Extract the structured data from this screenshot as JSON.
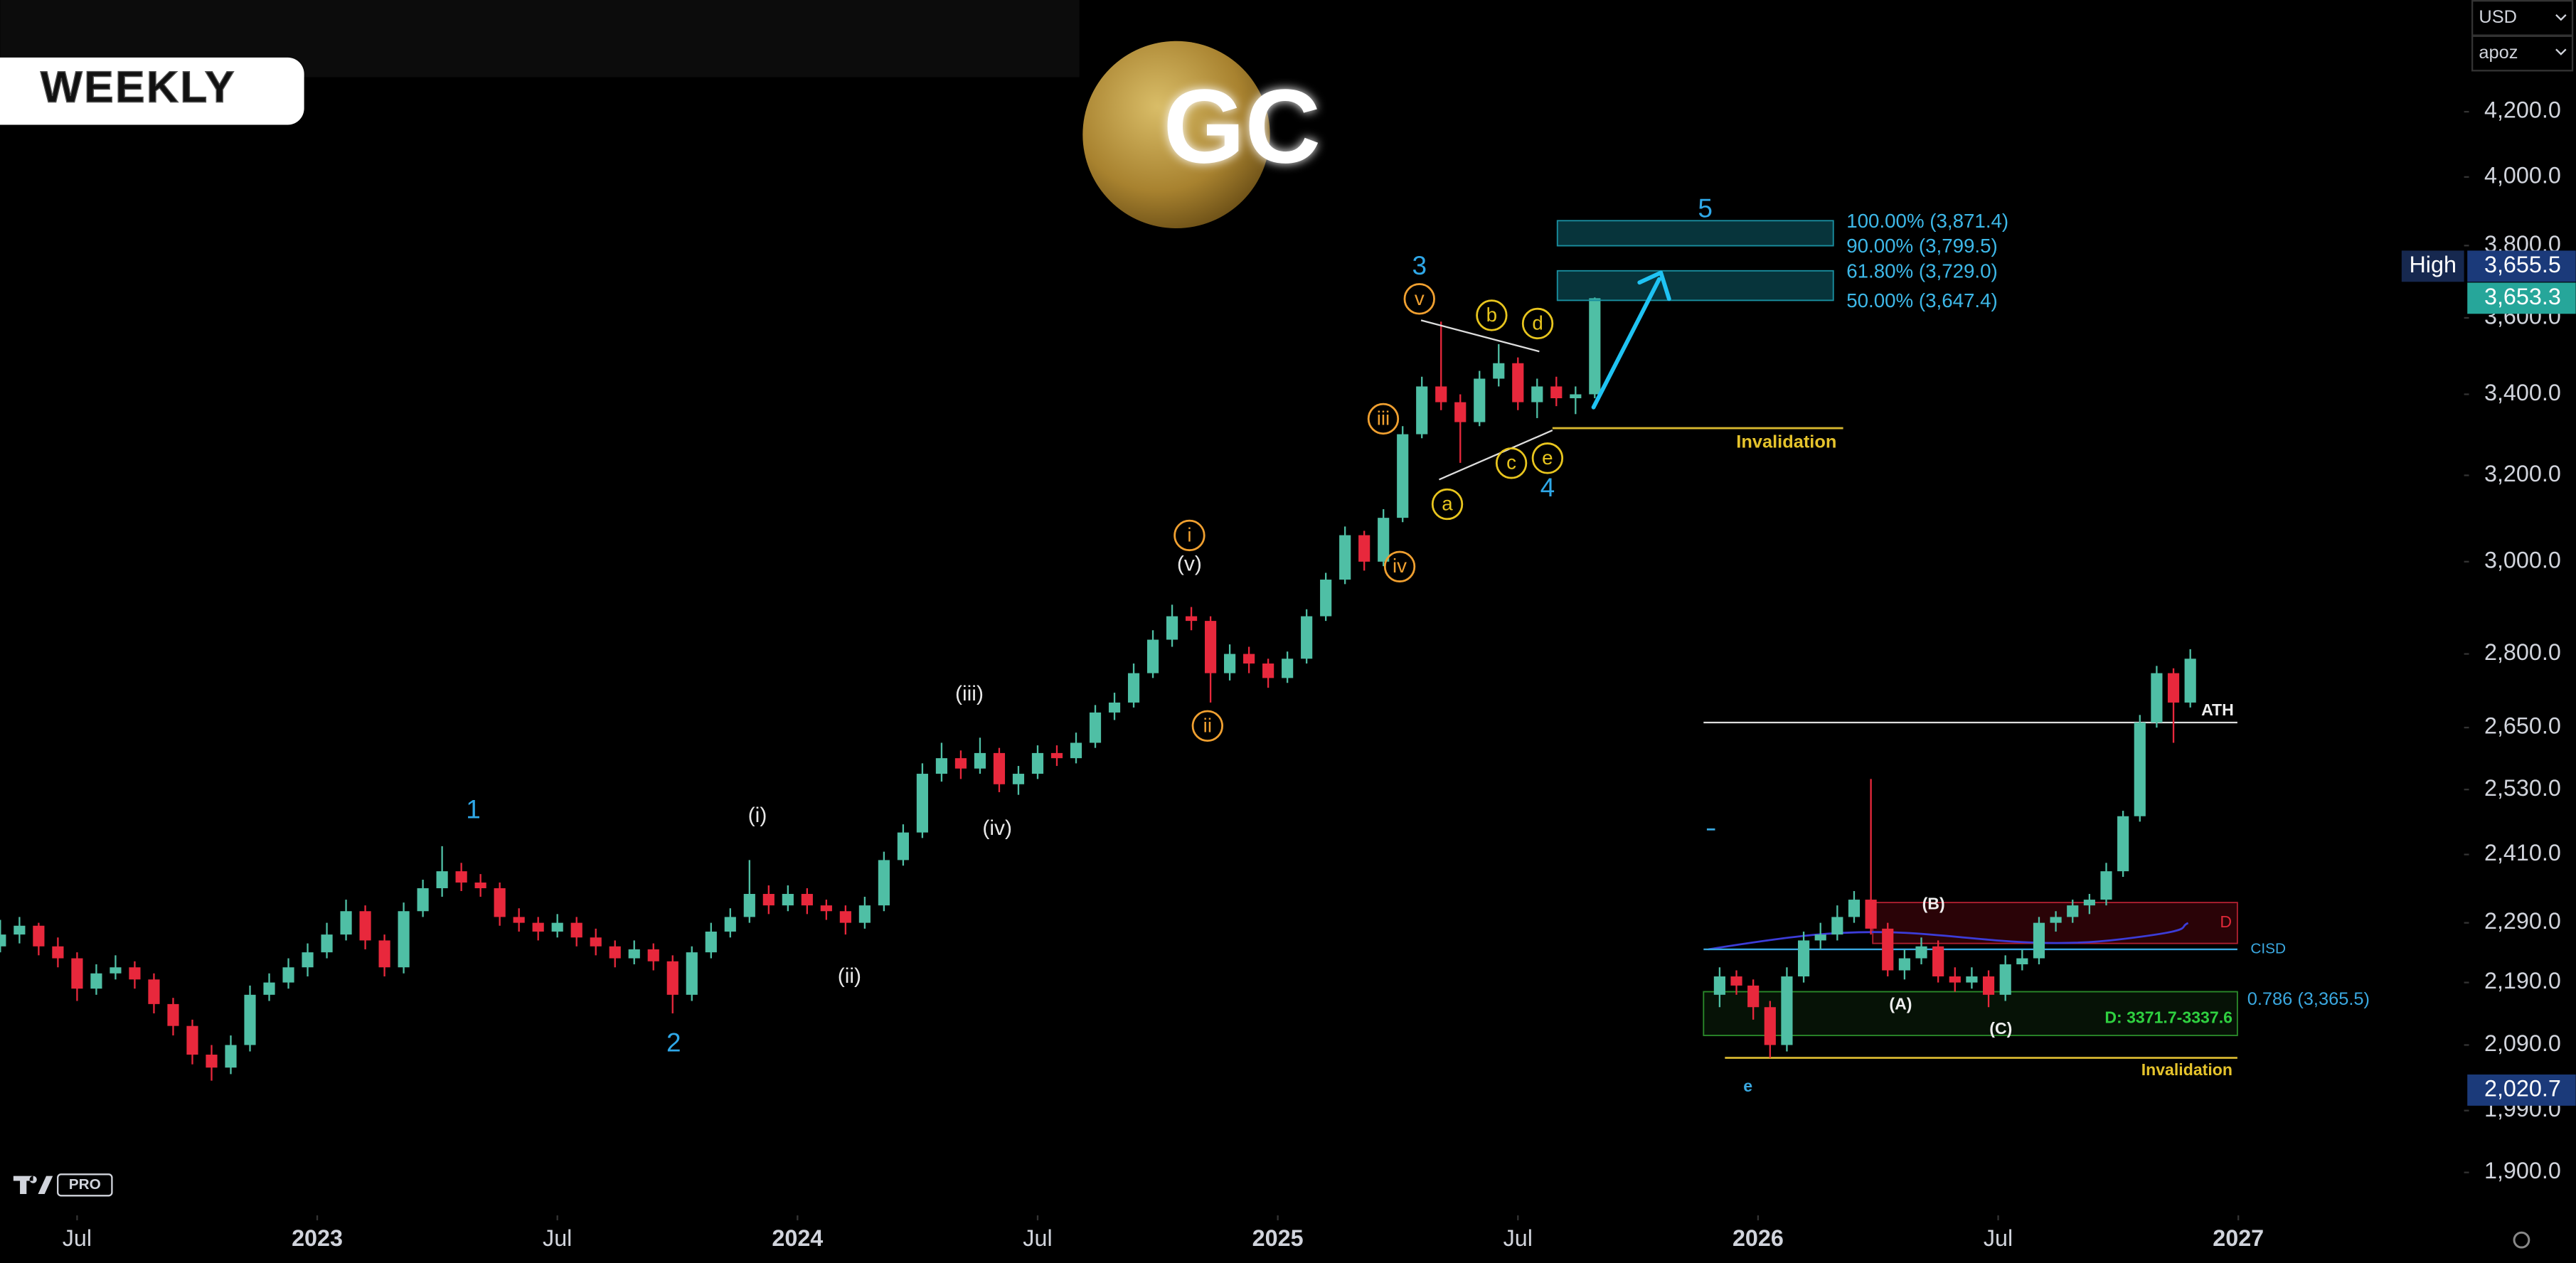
{
  "header": {
    "timeframe": "WEEKLY",
    "symbol": "GC",
    "currency": "USD",
    "account": "apoz",
    "badge": "PRO"
  },
  "chart_data": {
    "type": "candlestick",
    "log_scale": true,
    "grid": false,
    "up_color": "#4fbfa5",
    "down_color": "#e8283c",
    "xlim": [
      2022.34,
      2027.47
    ],
    "ylim": [
      1840,
      4566
    ],
    "xticks": [
      {
        "value": 2022.5,
        "label": "Jul"
      },
      2023,
      {
        "value": 2023.5,
        "label": "Jul"
      },
      2024,
      {
        "value": 2024.5,
        "label": "Jul"
      },
      2025,
      {
        "value": 2025.5,
        "label": "Jul"
      },
      2026,
      {
        "value": 2026.5,
        "label": "Jul"
      },
      2027
    ],
    "yticks": [
      {
        "value": 4200,
        "label": "4,200.0"
      },
      {
        "value": 4000,
        "label": "4,000.0"
      },
      {
        "value": 3800,
        "label": "3,800.0"
      },
      {
        "value": 3600,
        "label": "3,600.0"
      },
      {
        "value": 3400,
        "label": "3,400.0"
      },
      {
        "value": 3200,
        "label": "3,200.0"
      },
      {
        "value": 3000,
        "label": "3,000.0"
      },
      {
        "value": 2800,
        "label": "2,800.0"
      },
      {
        "value": 2650,
        "label": "2,650.0"
      },
      {
        "value": 2530,
        "label": "2,530.0"
      },
      {
        "value": 2410,
        "label": "2,410.0"
      },
      {
        "value": 2290,
        "label": "2,290.0"
      },
      {
        "value": 2190,
        "label": "2,190.0"
      },
      {
        "value": 2090,
        "label": "2,090.0"
      },
      {
        "value": 1990,
        "label": "1,990.0"
      },
      {
        "value": 1900,
        "label": "1,900.0"
      }
    ],
    "x": [
      2022.34,
      2022.38,
      2022.42,
      2022.46,
      2022.5,
      2022.54,
      2022.58,
      2022.62,
      2022.66,
      2022.7,
      2022.74,
      2022.78,
      2022.82,
      2022.86,
      2022.9,
      2022.94,
      2022.98,
      2023.02,
      2023.06,
      2023.1,
      2023.14,
      2023.18,
      2023.22,
      2023.26,
      2023.3,
      2023.34,
      2023.38,
      2023.42,
      2023.46,
      2023.5,
      2023.54,
      2023.58,
      2023.62,
      2023.66,
      2023.7,
      2023.74,
      2023.78,
      2023.82,
      2023.86,
      2023.9,
      2023.94,
      2023.98,
      2024.02,
      2024.06,
      2024.1,
      2024.14,
      2024.18,
      2024.22,
      2024.26,
      2024.3,
      2024.34,
      2024.38,
      2024.42,
      2024.46,
      2024.5,
      2024.54,
      2024.58,
      2024.62,
      2024.66,
      2024.7,
      2024.74,
      2024.78,
      2024.82,
      2024.86,
      2024.9,
      2024.94,
      2024.98,
      2025.02,
      2025.06,
      2025.1,
      2025.14,
      2025.18,
      2025.22,
      2025.26,
      2025.3,
      2025.34,
      2025.38,
      2025.42,
      2025.46,
      2025.5,
      2025.54,
      2025.58,
      2025.62,
      2025.66
    ],
    "ohlc": [
      [
        2250,
        2295,
        2240,
        2270
      ],
      [
        2270,
        2300,
        2255,
        2285
      ],
      [
        2285,
        2290,
        2235,
        2250
      ],
      [
        2250,
        2265,
        2215,
        2230
      ],
      [
        2230,
        2240,
        2160,
        2180
      ],
      [
        2180,
        2220,
        2170,
        2205
      ],
      [
        2205,
        2235,
        2195,
        2215
      ],
      [
        2215,
        2225,
        2180,
        2195
      ],
      [
        2195,
        2205,
        2140,
        2155
      ],
      [
        2155,
        2165,
        2105,
        2120
      ],
      [
        2120,
        2130,
        2060,
        2075
      ],
      [
        2075,
        2090,
        2035,
        2055
      ],
      [
        2055,
        2105,
        2045,
        2090
      ],
      [
        2090,
        2185,
        2080,
        2170
      ],
      [
        2170,
        2205,
        2160,
        2190
      ],
      [
        2190,
        2230,
        2180,
        2215
      ],
      [
        2215,
        2255,
        2200,
        2240
      ],
      [
        2240,
        2290,
        2230,
        2270
      ],
      [
        2270,
        2330,
        2260,
        2310
      ],
      [
        2310,
        2320,
        2245,
        2260
      ],
      [
        2260,
        2270,
        2200,
        2215
      ],
      [
        2215,
        2325,
        2205,
        2310
      ],
      [
        2310,
        2365,
        2300,
        2350
      ],
      [
        2350,
        2425,
        2335,
        2380
      ],
      [
        2380,
        2395,
        2345,
        2360
      ],
      [
        2360,
        2375,
        2335,
        2350
      ],
      [
        2350,
        2360,
        2285,
        2300
      ],
      [
        2300,
        2315,
        2275,
        2290
      ],
      [
        2290,
        2300,
        2260,
        2275
      ],
      [
        2275,
        2305,
        2265,
        2290
      ],
      [
        2290,
        2300,
        2250,
        2265
      ],
      [
        2265,
        2280,
        2235,
        2250
      ],
      [
        2250,
        2260,
        2215,
        2230
      ],
      [
        2230,
        2260,
        2220,
        2245
      ],
      [
        2245,
        2255,
        2210,
        2225
      ],
      [
        2225,
        2235,
        2140,
        2170
      ],
      [
        2170,
        2250,
        2160,
        2240
      ],
      [
        2240,
        2290,
        2230,
        2275
      ],
      [
        2275,
        2315,
        2265,
        2300
      ],
      [
        2300,
        2400,
        2290,
        2340
      ],
      [
        2340,
        2355,
        2305,
        2320
      ],
      [
        2320,
        2355,
        2310,
        2340
      ],
      [
        2340,
        2350,
        2305,
        2320
      ],
      [
        2320,
        2330,
        2295,
        2310
      ],
      [
        2310,
        2320,
        2270,
        2290
      ],
      [
        2290,
        2335,
        2280,
        2320
      ],
      [
        2320,
        2415,
        2310,
        2400
      ],
      [
        2400,
        2465,
        2390,
        2450
      ],
      [
        2450,
        2580,
        2440,
        2560
      ],
      [
        2560,
        2620,
        2545,
        2590
      ],
      [
        2590,
        2605,
        2550,
        2570
      ],
      [
        2570,
        2630,
        2560,
        2600
      ],
      [
        2600,
        2610,
        2525,
        2540
      ],
      [
        2540,
        2575,
        2520,
        2560
      ],
      [
        2560,
        2615,
        2550,
        2600
      ],
      [
        2600,
        2615,
        2575,
        2590
      ],
      [
        2590,
        2640,
        2580,
        2620
      ],
      [
        2620,
        2695,
        2610,
        2680
      ],
      [
        2680,
        2720,
        2665,
        2700
      ],
      [
        2700,
        2780,
        2690,
        2760
      ],
      [
        2760,
        2850,
        2750,
        2830
      ],
      [
        2830,
        2905,
        2815,
        2880
      ],
      [
        2880,
        2900,
        2850,
        2870
      ],
      [
        2870,
        2880,
        2700,
        2760
      ],
      [
        2760,
        2820,
        2745,
        2800
      ],
      [
        2800,
        2815,
        2760,
        2780
      ],
      [
        2780,
        2790,
        2730,
        2750
      ],
      [
        2750,
        2805,
        2740,
        2790
      ],
      [
        2790,
        2895,
        2780,
        2880
      ],
      [
        2880,
        2975,
        2870,
        2960
      ],
      [
        2960,
        3080,
        2950,
        3060
      ],
      [
        3060,
        3070,
        2980,
        3000
      ],
      [
        3000,
        3120,
        2990,
        3100
      ],
      [
        3100,
        3320,
        3090,
        3300
      ],
      [
        3300,
        3445,
        3290,
        3420
      ],
      [
        3420,
        3590,
        3360,
        3380
      ],
      [
        3380,
        3400,
        3230,
        3330
      ],
      [
        3330,
        3460,
        3320,
        3440
      ],
      [
        3440,
        3530,
        3420,
        3480
      ],
      [
        3480,
        3495,
        3360,
        3380
      ],
      [
        3380,
        3440,
        3340,
        3420
      ],
      [
        3420,
        3445,
        3370,
        3390
      ],
      [
        3390,
        3420,
        3350,
        3400
      ],
      [
        3400,
        3655.5,
        3390,
        3653.3
      ]
    ],
    "inset_x": [
      2025.92,
      2025.955,
      2025.99,
      2026.025,
      2026.06,
      2026.095,
      2026.13,
      2026.165,
      2026.2,
      2026.235,
      2026.27,
      2026.305,
      2026.34,
      2026.375,
      2026.41,
      2026.445,
      2026.48,
      2026.515,
      2026.55,
      2026.585,
      2026.62,
      2026.655,
      2026.69,
      2026.725,
      2026.76,
      2026.795,
      2026.83,
      2026.865,
      2026.9
    ],
    "inset_ohlc": [
      [
        2170,
        2215,
        2150,
        2200
      ],
      [
        2200,
        2210,
        2170,
        2185
      ],
      [
        2185,
        2195,
        2130,
        2150
      ],
      [
        2150,
        2160,
        2070,
        2090
      ],
      [
        2090,
        2215,
        2080,
        2200
      ],
      [
        2200,
        2275,
        2190,
        2260
      ],
      [
        2260,
        2290,
        2245,
        2270
      ],
      [
        2270,
        2320,
        2260,
        2300
      ],
      [
        2300,
        2345,
        2290,
        2330
      ],
      [
        2330,
        2550,
        2270,
        2280
      ],
      [
        2280,
        2290,
        2200,
        2210
      ],
      [
        2210,
        2245,
        2195,
        2230
      ],
      [
        2230,
        2265,
        2220,
        2250
      ],
      [
        2250,
        2260,
        2190,
        2200
      ],
      [
        2200,
        2215,
        2175,
        2190
      ],
      [
        2190,
        2215,
        2180,
        2200
      ],
      [
        2200,
        2210,
        2150,
        2170
      ],
      [
        2170,
        2235,
        2160,
        2220
      ],
      [
        2220,
        2245,
        2210,
        2230
      ],
      [
        2230,
        2300,
        2220,
        2290
      ],
      [
        2290,
        2310,
        2275,
        2300
      ],
      [
        2300,
        2330,
        2290,
        2320
      ],
      [
        2320,
        2340,
        2305,
        2330
      ],
      [
        2330,
        2395,
        2320,
        2380
      ],
      [
        2380,
        2490,
        2370,
        2480
      ],
      [
        2480,
        2675,
        2470,
        2660
      ],
      [
        2660,
        2775,
        2650,
        2760
      ],
      [
        2760,
        2770,
        2620,
        2700
      ],
      [
        2700,
        2810,
        2690,
        2790
      ]
    ],
    "fib_levels": [
      {
        "value": 3871.4,
        "label": "100.00% (3,871.4)"
      },
      {
        "value": 3799.5,
        "label": "90.00% (3,799.5)"
      },
      {
        "value": 3729.0,
        "label": "61.80% (3,729.0)"
      },
      {
        "value": 3647.4,
        "label": "50.00% (3,647.4)"
      }
    ],
    "invalidation": {
      "label": "Invalidation",
      "value": 3315
    },
    "high_tag": {
      "name": "High",
      "value": 3655.5,
      "label": "3,655.5"
    },
    "last_tag": {
      "value": 3653.3,
      "label": "3,653.3"
    },
    "low_tag": {
      "value": 2020.7,
      "label": "2,020.7"
    },
    "waves": {
      "primary": [
        "1",
        "2",
        "3",
        "4",
        "5"
      ],
      "minor": [
        "(i)",
        "(ii)",
        "(iii)",
        "(iv)",
        "(v)"
      ],
      "minute": [
        "i",
        "ii",
        "iii",
        "iv",
        "v"
      ],
      "triangle": [
        "a",
        "b",
        "c",
        "d",
        "e"
      ]
    },
    "inset": {
      "ath": {
        "label": "ATH",
        "value": 2660
      },
      "d_zone": {
        "label": "D",
        "top": 2325,
        "bottom": 2255
      },
      "cisd": {
        "label": "CISD",
        "value": 2245
      },
      "demand": {
        "label": "D: 3371.7-3337.6",
        "top": 2175,
        "bottom": 2105
      },
      "fib": {
        "label": "0.786 (3,365.5)"
      },
      "invalidation": {
        "label": "Invalidation",
        "value": 2070
      },
      "waves": [
        "(A)",
        "(B)",
        "(C)",
        "e"
      ]
    }
  }
}
